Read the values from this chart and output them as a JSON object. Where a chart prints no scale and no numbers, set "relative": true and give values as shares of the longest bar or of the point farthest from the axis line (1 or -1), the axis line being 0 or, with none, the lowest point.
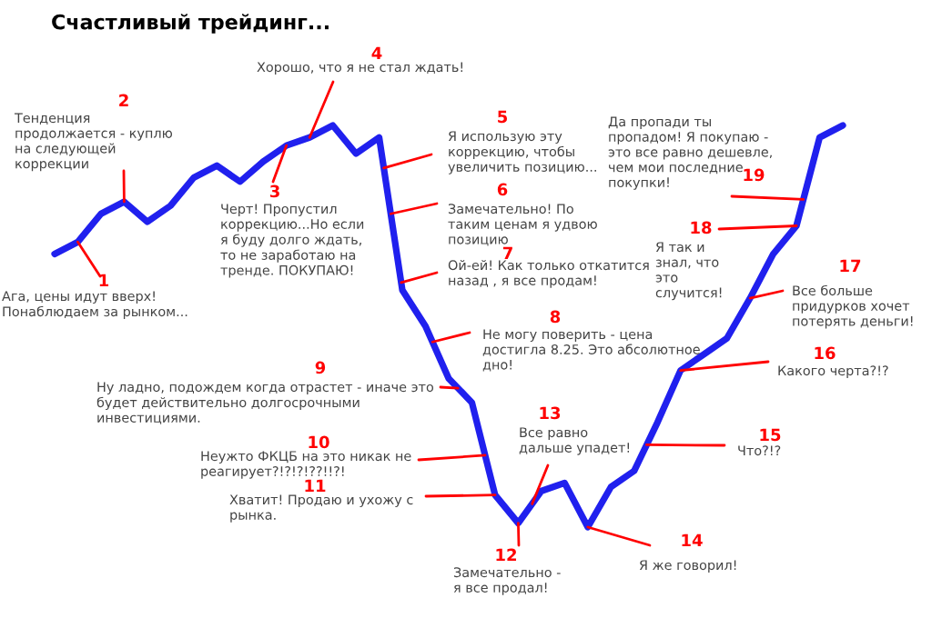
{
  "chart_data": {
    "type": "line",
    "title": "Счастливый трейдинг...",
    "relative": true,
    "categories": [
      null,
      null,
      null,
      null,
      null,
      null,
      null,
      null,
      null,
      null,
      null,
      null,
      null,
      null,
      null,
      null,
      null,
      null,
      null,
      null,
      null,
      null,
      null,
      null,
      null,
      null,
      null,
      null,
      null,
      null,
      null,
      null,
      null,
      null,
      null
    ],
    "series": [
      {
        "color": "#2020ee",
        "values": [
          0.68,
          0.71,
          0.78,
          0.81,
          0.76,
          0.8,
          0.87,
          0.9,
          0.86,
          0.91,
          0.95,
          0.97,
          1.0,
          0.93,
          0.97,
          0.59,
          0.5,
          0.37,
          0.31,
          0.08,
          0.01,
          0.09,
          0.11,
          0,
          0.1,
          0.14,
          0.26,
          0.39,
          0.43,
          0.47,
          0.57,
          0.68,
          0.75,
          0.97,
          1.0
        ]
      }
    ],
    "annotations": [
      "1",
      "Ага, цены идут вверх!\nПонаблюдаем за рынком...",
      "2",
      "Тенденция\nпродолжается - куплю\nна следующей\nкоррекции",
      "3",
      "Черт! Пропустил\nкоррекцию...Но если\nя буду долго ждать,\nто не заработаю на\nтренде. ПОКУПАЮ!",
      "4",
      "Хорошо, что я не стал ждать!",
      "5",
      "Я использую эту\nкоррекцию, чтобы\nувеличить позицию...",
      "6",
      "Замечательно! По\nтаким ценам я удвою\nпозицию",
      "7",
      "Ой-ей! Как только откатится\nназад , я все продам!",
      "8",
      "Не могу поверить - цена\nдостигла 8.25. Это абсолютное\nдно!",
      "9",
      "Ну ладно, подождем когда отрастет - иначе это\nбудет действительно долгосрочными\nинвестициями.",
      "10",
      "Неужто ФКЦБ на это никак не\nреагирует?!?!?!??!!?!",
      "11",
      "Хватит! Продаю и ухожу с\nрынка.",
      "12",
      "Замечательно -\nя все продал!",
      "13",
      "Все равно\nдальше упадет!",
      "14",
      "Я же говорил!",
      "15",
      "Что?!?",
      "16",
      "Какого черта?!?",
      "17",
      "Все больше\nпридурков хочет\nпотерять деньги!",
      "18",
      "Я так и\nзнал, что\nэто\nслучится!",
      "19",
      "Да пропади ты\nпропадом! Я покупаю -\nэто все равно дешевле,\nчем мои последние\nпокупки!"
    ]
  }
}
